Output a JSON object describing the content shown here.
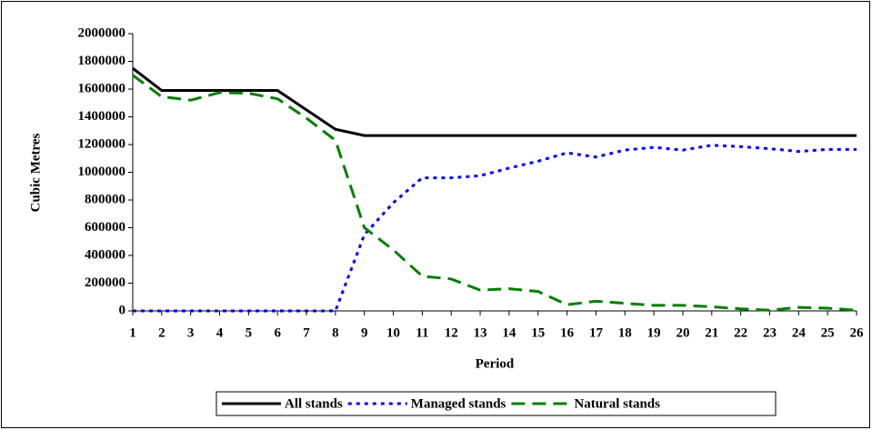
{
  "chart_data": {
    "type": "line",
    "x": [
      1,
      2,
      3,
      4,
      5,
      6,
      7,
      8,
      9,
      10,
      11,
      12,
      13,
      14,
      15,
      16,
      17,
      18,
      19,
      20,
      21,
      22,
      23,
      24,
      25,
      26
    ],
    "xlim": [
      1,
      26
    ],
    "xticks": [
      1,
      2,
      3,
      4,
      5,
      6,
      7,
      8,
      9,
      10,
      11,
      12,
      13,
      14,
      15,
      16,
      17,
      18,
      19,
      20,
      21,
      22,
      23,
      24,
      25,
      26
    ],
    "ylim": [
      0,
      2000000
    ],
    "yticks": [
      0,
      200000,
      400000,
      600000,
      800000,
      1000000,
      1200000,
      1400000,
      1600000,
      1800000,
      2000000
    ],
    "xlabel": "Period",
    "ylabel": "Cubic Metres",
    "grid": false,
    "legend": "bottom",
    "series": [
      {
        "name": "All stands",
        "color": "#000000",
        "dash": "solid",
        "values": [
          1750000,
          1590000,
          1590000,
          1590000,
          1590000,
          1590000,
          1450000,
          1310000,
          1265000,
          1265000,
          1265000,
          1265000,
          1265000,
          1265000,
          1265000,
          1265000,
          1265000,
          1265000,
          1265000,
          1265000,
          1265000,
          1265000,
          1265000,
          1265000,
          1265000,
          1265000
        ]
      },
      {
        "name": "Managed stands",
        "color": "#0000ff",
        "dash": "dotted",
        "values": [
          0,
          0,
          0,
          0,
          0,
          0,
          0,
          0,
          550000,
          780000,
          960000,
          960000,
          975000,
          1030000,
          1080000,
          1140000,
          1110000,
          1160000,
          1180000,
          1160000,
          1195000,
          1185000,
          1170000,
          1150000,
          1165000,
          1165000
        ]
      },
      {
        "name": "Natural stands",
        "color": "#008000",
        "dash": "dashed",
        "values": [
          1700000,
          1545000,
          1520000,
          1575000,
          1570000,
          1530000,
          1390000,
          1230000,
          600000,
          440000,
          250000,
          230000,
          150000,
          160000,
          140000,
          45000,
          70000,
          55000,
          40000,
          40000,
          30000,
          15000,
          5000,
          25000,
          20000,
          5000
        ]
      }
    ]
  }
}
